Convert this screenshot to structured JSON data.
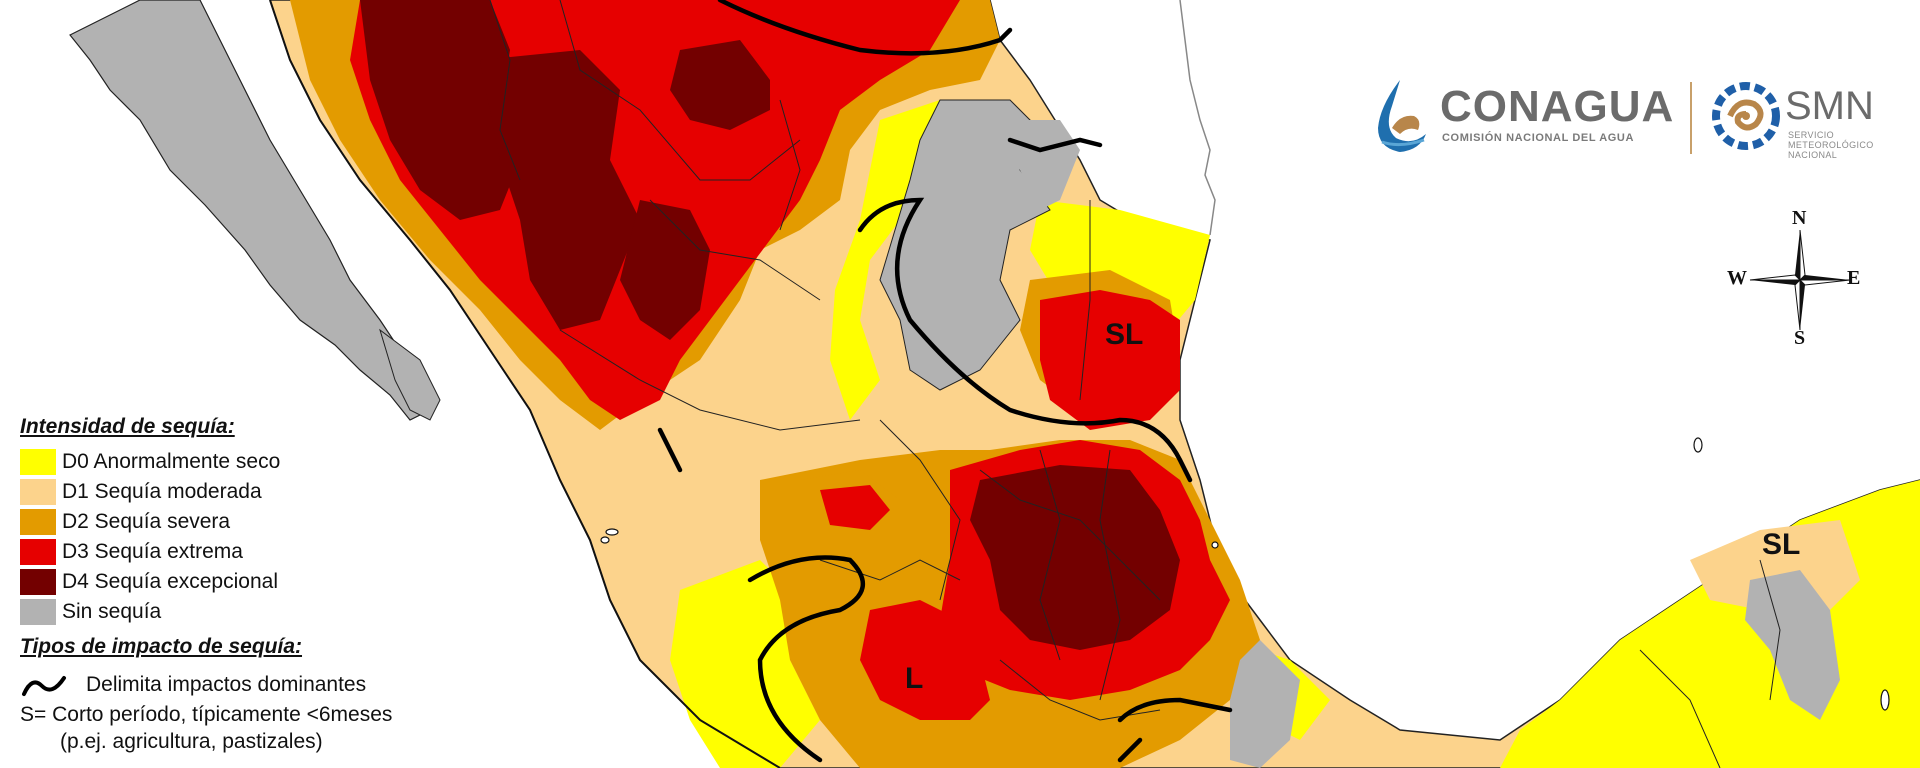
{
  "legend": {
    "title": "Intensidad de sequía:",
    "items": [
      {
        "code": "D0",
        "label": "D0 Anormalmente seco",
        "color": "#ffff00"
      },
      {
        "code": "D1",
        "label": "D1 Sequía moderada",
        "color": "#fcd38c"
      },
      {
        "code": "D2",
        "label": "D2 Sequía severa",
        "color": "#e39b00"
      },
      {
        "code": "D3",
        "label": "D3 Sequía extrema",
        "color": "#e60000"
      },
      {
        "code": "D4",
        "label": "D4 Sequía excepcional",
        "color": "#730000"
      },
      {
        "code": "none",
        "label": "Sin sequía",
        "color": "#b2b2b2"
      }
    ],
    "impact_title": "Tipos de impacto de sequía:",
    "impact_line_label": "Delimita impactos dominantes",
    "impact_s_line1": "S= Corto período, típicamente <6meses",
    "impact_s_line2": "(p.ej. agricultura, pastizales)"
  },
  "logos": {
    "conagua": "CONAGUA",
    "conagua_sub": "COMISIÓN NACIONAL DEL AGUA",
    "smn": "SMN",
    "smn_sub": "SERVICIO METEOROLÓGICO NACIONAL"
  },
  "compass": {
    "n": "N",
    "s": "S",
    "e": "E",
    "w": "W"
  },
  "map_labels": {
    "sl_northeast": "SL",
    "l_west": "L",
    "sl_yucatan": "SL"
  },
  "map_colors": {
    "ocean": "#ffffff",
    "land_outside": "#ffffff",
    "no_drought": "#b2b2b2",
    "boundary": "#000000"
  }
}
